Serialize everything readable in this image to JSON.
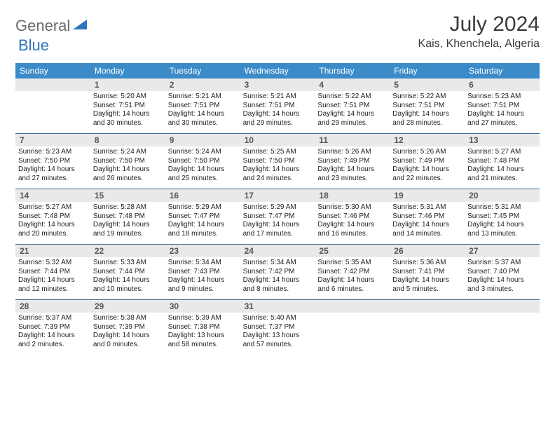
{
  "brand": {
    "part1": "General",
    "part2": "Blue"
  },
  "title": "July 2024",
  "location": "Kais, Khenchela, Algeria",
  "colors": {
    "header_bg": "#3b8bc9",
    "header_text": "#ffffff",
    "daynum_bg": "#e9e9e9",
    "week_divider": "#3b6a9a",
    "brand_gray": "#6b6b6b",
    "brand_blue": "#2f77bb"
  },
  "layout": {
    "cols": 7,
    "rows": 5,
    "first_weekday_offset": 1
  },
  "dow": [
    "Sunday",
    "Monday",
    "Tuesday",
    "Wednesday",
    "Thursday",
    "Friday",
    "Saturday"
  ],
  "days": [
    {
      "n": 1,
      "sunrise": "5:20 AM",
      "sunset": "7:51 PM",
      "daylight": "14 hours and 30 minutes."
    },
    {
      "n": 2,
      "sunrise": "5:21 AM",
      "sunset": "7:51 PM",
      "daylight": "14 hours and 30 minutes."
    },
    {
      "n": 3,
      "sunrise": "5:21 AM",
      "sunset": "7:51 PM",
      "daylight": "14 hours and 29 minutes."
    },
    {
      "n": 4,
      "sunrise": "5:22 AM",
      "sunset": "7:51 PM",
      "daylight": "14 hours and 29 minutes."
    },
    {
      "n": 5,
      "sunrise": "5:22 AM",
      "sunset": "7:51 PM",
      "daylight": "14 hours and 28 minutes."
    },
    {
      "n": 6,
      "sunrise": "5:23 AM",
      "sunset": "7:51 PM",
      "daylight": "14 hours and 27 minutes."
    },
    {
      "n": 7,
      "sunrise": "5:23 AM",
      "sunset": "7:50 PM",
      "daylight": "14 hours and 27 minutes."
    },
    {
      "n": 8,
      "sunrise": "5:24 AM",
      "sunset": "7:50 PM",
      "daylight": "14 hours and 26 minutes."
    },
    {
      "n": 9,
      "sunrise": "5:24 AM",
      "sunset": "7:50 PM",
      "daylight": "14 hours and 25 minutes."
    },
    {
      "n": 10,
      "sunrise": "5:25 AM",
      "sunset": "7:50 PM",
      "daylight": "14 hours and 24 minutes."
    },
    {
      "n": 11,
      "sunrise": "5:26 AM",
      "sunset": "7:49 PM",
      "daylight": "14 hours and 23 minutes."
    },
    {
      "n": 12,
      "sunrise": "5:26 AM",
      "sunset": "7:49 PM",
      "daylight": "14 hours and 22 minutes."
    },
    {
      "n": 13,
      "sunrise": "5:27 AM",
      "sunset": "7:48 PM",
      "daylight": "14 hours and 21 minutes."
    },
    {
      "n": 14,
      "sunrise": "5:27 AM",
      "sunset": "7:48 PM",
      "daylight": "14 hours and 20 minutes."
    },
    {
      "n": 15,
      "sunrise": "5:28 AM",
      "sunset": "7:48 PM",
      "daylight": "14 hours and 19 minutes."
    },
    {
      "n": 16,
      "sunrise": "5:29 AM",
      "sunset": "7:47 PM",
      "daylight": "14 hours and 18 minutes."
    },
    {
      "n": 17,
      "sunrise": "5:29 AM",
      "sunset": "7:47 PM",
      "daylight": "14 hours and 17 minutes."
    },
    {
      "n": 18,
      "sunrise": "5:30 AM",
      "sunset": "7:46 PM",
      "daylight": "14 hours and 16 minutes."
    },
    {
      "n": 19,
      "sunrise": "5:31 AM",
      "sunset": "7:46 PM",
      "daylight": "14 hours and 14 minutes."
    },
    {
      "n": 20,
      "sunrise": "5:31 AM",
      "sunset": "7:45 PM",
      "daylight": "14 hours and 13 minutes."
    },
    {
      "n": 21,
      "sunrise": "5:32 AM",
      "sunset": "7:44 PM",
      "daylight": "14 hours and 12 minutes."
    },
    {
      "n": 22,
      "sunrise": "5:33 AM",
      "sunset": "7:44 PM",
      "daylight": "14 hours and 10 minutes."
    },
    {
      "n": 23,
      "sunrise": "5:34 AM",
      "sunset": "7:43 PM",
      "daylight": "14 hours and 9 minutes."
    },
    {
      "n": 24,
      "sunrise": "5:34 AM",
      "sunset": "7:42 PM",
      "daylight": "14 hours and 8 minutes."
    },
    {
      "n": 25,
      "sunrise": "5:35 AM",
      "sunset": "7:42 PM",
      "daylight": "14 hours and 6 minutes."
    },
    {
      "n": 26,
      "sunrise": "5:36 AM",
      "sunset": "7:41 PM",
      "daylight": "14 hours and 5 minutes."
    },
    {
      "n": 27,
      "sunrise": "5:37 AM",
      "sunset": "7:40 PM",
      "daylight": "14 hours and 3 minutes."
    },
    {
      "n": 28,
      "sunrise": "5:37 AM",
      "sunset": "7:39 PM",
      "daylight": "14 hours and 2 minutes."
    },
    {
      "n": 29,
      "sunrise": "5:38 AM",
      "sunset": "7:39 PM",
      "daylight": "14 hours and 0 minutes."
    },
    {
      "n": 30,
      "sunrise": "5:39 AM",
      "sunset": "7:38 PM",
      "daylight": "13 hours and 58 minutes."
    },
    {
      "n": 31,
      "sunrise": "5:40 AM",
      "sunset": "7:37 PM",
      "daylight": "13 hours and 57 minutes."
    }
  ],
  "labels": {
    "sunrise": "Sunrise:",
    "sunset": "Sunset:",
    "daylight": "Daylight:"
  }
}
